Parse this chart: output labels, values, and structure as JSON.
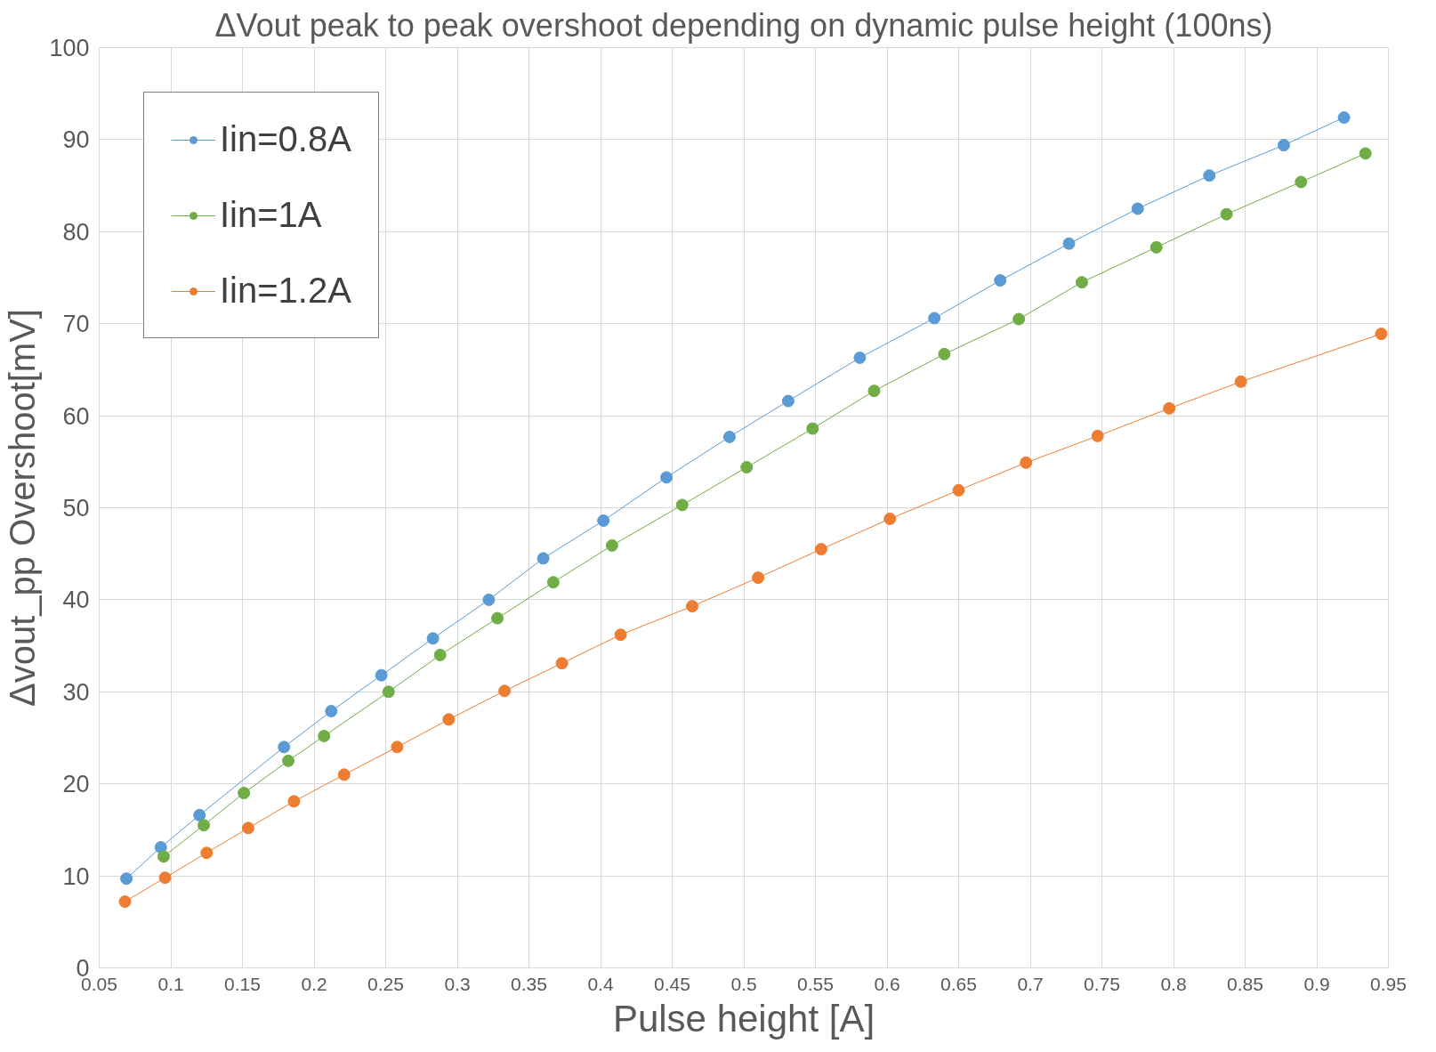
{
  "chart_data": {
    "type": "line",
    "title": "ΔVout peak to peak overshoot depending on dynamic pulse height (100ns)",
    "xlabel": "Pulse height [A]",
    "ylabel": "Δvout_pp Overshoot[mV]",
    "xlim": [
      0.05,
      0.95
    ],
    "xticks": [
      0.05,
      0.1,
      0.15,
      0.2,
      0.25,
      0.3,
      0.35,
      0.4,
      0.45,
      0.5,
      0.55,
      0.6,
      0.65,
      0.7,
      0.75,
      0.8,
      0.85,
      0.9,
      0.95
    ],
    "ylim": [
      0,
      100
    ],
    "yticks": [
      0,
      10,
      20,
      30,
      40,
      50,
      60,
      70,
      80,
      90,
      100
    ],
    "grid": true,
    "legend": "top left",
    "marker": "circle",
    "line_style": "solid",
    "series": [
      {
        "name": "Iin=0.8A",
        "color": "#5b9bd5",
        "x": [
          0.069,
          0.093,
          0.12,
          0.179,
          0.212,
          0.247,
          0.283,
          0.322,
          0.36,
          0.402,
          0.446,
          0.49,
          0.531,
          0.581,
          0.633,
          0.679,
          0.727,
          0.775,
          0.825,
          0.877,
          0.919
        ],
        "values": [
          9.7,
          13.1,
          16.6,
          24.0,
          27.9,
          31.8,
          35.8,
          40.0,
          44.5,
          48.6,
          53.3,
          57.7,
          61.6,
          66.3,
          70.6,
          74.7,
          78.7,
          82.5,
          86.1,
          89.4,
          92.4
        ]
      },
      {
        "name": "Iin=1A",
        "color": "#70ad47",
        "x": [
          0.095,
          0.123,
          0.151,
          0.182,
          0.207,
          0.252,
          0.288,
          0.328,
          0.367,
          0.408,
          0.457,
          0.502,
          0.548,
          0.591,
          0.64,
          0.692,
          0.736,
          0.788,
          0.837,
          0.889,
          0.934
        ],
        "values": [
          12.1,
          15.5,
          19.0,
          22.5,
          25.2,
          30.0,
          34.0,
          38.0,
          41.9,
          45.9,
          50.3,
          54.4,
          58.6,
          62.7,
          66.7,
          70.5,
          74.5,
          78.3,
          81.9,
          85.4,
          88.5
        ]
      },
      {
        "name": "Iin=1.2A",
        "color": "#ed7d31",
        "x": [
          0.068,
          0.096,
          0.125,
          0.154,
          0.186,
          0.221,
          0.258,
          0.294,
          0.333,
          0.373,
          0.414,
          0.464,
          0.51,
          0.554,
          0.602,
          0.65,
          0.697,
          0.747,
          0.797,
          0.847,
          0.945
        ],
        "values": [
          7.2,
          9.8,
          12.5,
          15.2,
          18.1,
          21.0,
          24.0,
          27.0,
          30.1,
          33.1,
          36.2,
          39.3,
          42.4,
          45.5,
          48.8,
          51.9,
          54.9,
          57.8,
          60.8,
          63.7,
          68.9
        ]
      }
    ]
  }
}
